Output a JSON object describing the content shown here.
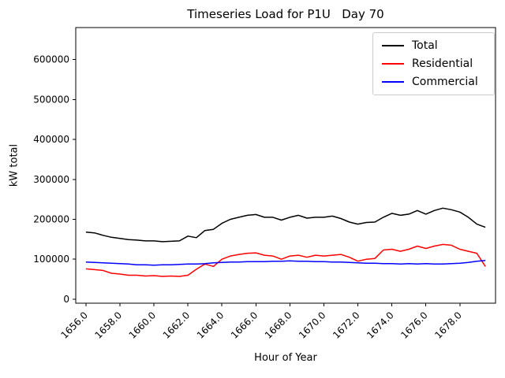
{
  "chart_data": {
    "type": "line",
    "title": "Timeseries Load for P1U   Day 70",
    "xlabel": "Hour of Year",
    "ylabel": "kW total",
    "xlim": [
      1655.4,
      1680.1
    ],
    "ylim": [
      -10000,
      680000
    ],
    "grid": false,
    "legend_position": "upper right",
    "x_ticks": [
      1656,
      1658,
      1660,
      1662,
      1664,
      1666,
      1668,
      1670,
      1672,
      1674,
      1676,
      1678
    ],
    "x_tick_labels": [
      "1656.0",
      "1658.0",
      "1660.0",
      "1662.0",
      "1664.0",
      "1666.0",
      "1668.0",
      "1670.0",
      "1672.0",
      "1674.0",
      "1676.0",
      "1678.0"
    ],
    "y_ticks": [
      0,
      100000,
      200000,
      300000,
      400000,
      500000,
      600000
    ],
    "y_tick_labels": [
      "0",
      "100000",
      "200000",
      "300000",
      "400000",
      "500000",
      "600000"
    ],
    "x": [
      1656.0,
      1656.5,
      1657.0,
      1657.5,
      1658.0,
      1658.5,
      1659.0,
      1659.5,
      1660.0,
      1660.5,
      1661.0,
      1661.5,
      1662.0,
      1662.5,
      1663.0,
      1663.5,
      1664.0,
      1664.5,
      1665.0,
      1665.5,
      1666.0,
      1666.5,
      1667.0,
      1667.5,
      1668.0,
      1668.5,
      1669.0,
      1669.5,
      1670.0,
      1670.5,
      1671.0,
      1671.5,
      1672.0,
      1672.5,
      1673.0,
      1673.5,
      1674.0,
      1674.5,
      1675.0,
      1675.5,
      1676.0,
      1676.5,
      1677.0,
      1677.5,
      1678.0,
      1678.5,
      1679.0,
      1679.5
    ],
    "series": [
      {
        "name": "Total",
        "color": "#000000",
        "values": [
          168000,
          166000,
          160000,
          155000,
          152000,
          149000,
          148000,
          146000,
          146000,
          144000,
          145000,
          146000,
          158000,
          154000,
          172000,
          175000,
          190000,
          200000,
          205000,
          210000,
          212000,
          205000,
          205000,
          198000,
          205000,
          210000,
          203000,
          205000,
          205000,
          208000,
          202000,
          193000,
          188000,
          192000,
          193000,
          205000,
          215000,
          210000,
          213000,
          222000,
          213000,
          222000,
          228000,
          224000,
          218000,
          205000,
          188000,
          180000
        ]
      },
      {
        "name": "Residential",
        "color": "#ff0000",
        "values": [
          76000,
          74000,
          72000,
          65000,
          63000,
          60000,
          60000,
          58000,
          59000,
          57000,
          58000,
          57000,
          60000,
          75000,
          88000,
          82000,
          100000,
          108000,
          112000,
          115000,
          116000,
          110000,
          108000,
          100000,
          108000,
          110000,
          105000,
          110000,
          108000,
          110000,
          112000,
          105000,
          95000,
          100000,
          102000,
          123000,
          125000,
          120000,
          125000,
          133000,
          127000,
          133000,
          137000,
          135000,
          125000,
          120000,
          115000,
          82000
        ]
      },
      {
        "name": "Commercial",
        "color": "#0000ff",
        "values": [
          93000,
          92000,
          91000,
          90000,
          89000,
          88000,
          86000,
          86000,
          85000,
          86000,
          86000,
          87000,
          88000,
          88000,
          89000,
          91000,
          92000,
          93000,
          93000,
          94000,
          94000,
          94000,
          95000,
          95000,
          96000,
          95000,
          95000,
          94000,
          94000,
          93000,
          93000,
          92000,
          91000,
          90000,
          90000,
          89000,
          89000,
          88000,
          89000,
          88000,
          89000,
          88000,
          88000,
          89000,
          90000,
          92000,
          95000,
          97000
        ]
      }
    ]
  }
}
